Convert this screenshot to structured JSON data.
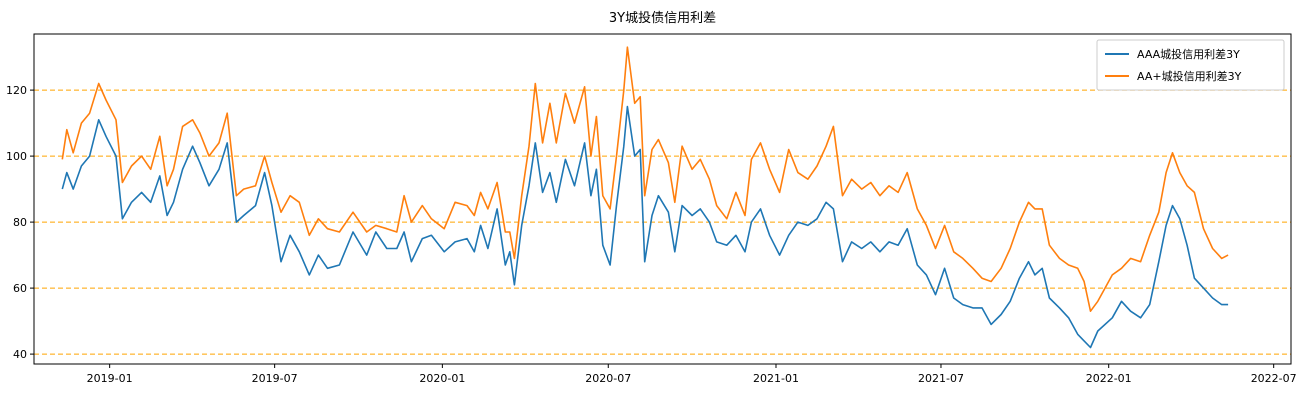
{
  "chart_data": {
    "type": "line",
    "title": "3Y城投债信用利差",
    "xlabel": "",
    "ylabel": "",
    "xlim": [
      "2018-10-10",
      "2022-07-20"
    ],
    "ylim": [
      37,
      137
    ],
    "x_ticks": [
      "2019-01",
      "2019-07",
      "2020-01",
      "2020-07",
      "2021-01",
      "2021-07",
      "2022-01",
      "2022-07"
    ],
    "y_ticks": [
      40,
      60,
      80,
      100,
      120
    ],
    "grid": "horizontal dashed",
    "grid_color": "#ffa500",
    "legend_position": "top-right",
    "series": [
      {
        "name": "AAA城投信用利差3Y",
        "color": "#1f77b4",
        "points": [
          [
            "2018-11-10",
            90
          ],
          [
            "2018-11-15",
            95
          ],
          [
            "2018-11-22",
            90
          ],
          [
            "2018-12-01",
            97
          ],
          [
            "2018-12-10",
            100
          ],
          [
            "2018-12-20",
            111
          ],
          [
            "2018-12-28",
            106
          ],
          [
            "2019-01-08",
            100
          ],
          [
            "2019-01-15",
            81
          ],
          [
            "2019-01-25",
            86
          ],
          [
            "2019-02-05",
            89
          ],
          [
            "2019-02-15",
            86
          ],
          [
            "2019-02-25",
            94
          ],
          [
            "2019-03-05",
            82
          ],
          [
            "2019-03-12",
            86
          ],
          [
            "2019-03-22",
            96
          ],
          [
            "2019-04-02",
            103
          ],
          [
            "2019-04-10",
            98
          ],
          [
            "2019-04-20",
            91
          ],
          [
            "2019-05-01",
            96
          ],
          [
            "2019-05-10",
            104
          ],
          [
            "2019-05-20",
            80
          ],
          [
            "2019-05-28",
            82
          ],
          [
            "2019-06-10",
            85
          ],
          [
            "2019-06-20",
            95
          ],
          [
            "2019-06-28",
            85
          ],
          [
            "2019-07-08",
            68
          ],
          [
            "2019-07-18",
            76
          ],
          [
            "2019-07-28",
            71
          ],
          [
            "2019-08-08",
            64
          ],
          [
            "2019-08-18",
            70
          ],
          [
            "2019-08-28",
            66
          ],
          [
            "2019-09-10",
            67
          ],
          [
            "2019-09-25",
            77
          ],
          [
            "2019-10-10",
            70
          ],
          [
            "2019-10-20",
            77
          ],
          [
            "2019-11-01",
            72
          ],
          [
            "2019-11-12",
            72
          ],
          [
            "2019-11-20",
            77
          ],
          [
            "2019-11-28",
            68
          ],
          [
            "2019-12-10",
            75
          ],
          [
            "2019-12-20",
            76
          ],
          [
            "2020-01-03",
            71
          ],
          [
            "2020-01-15",
            74
          ],
          [
            "2020-01-28",
            75
          ],
          [
            "2020-02-05",
            71
          ],
          [
            "2020-02-12",
            79
          ],
          [
            "2020-02-20",
            72
          ],
          [
            "2020-03-01",
            84
          ],
          [
            "2020-03-10",
            67
          ],
          [
            "2020-03-15",
            71
          ],
          [
            "2020-03-20",
            61
          ],
          [
            "2020-03-28",
            79
          ],
          [
            "2020-04-05",
            91
          ],
          [
            "2020-04-12",
            104
          ],
          [
            "2020-04-20",
            89
          ],
          [
            "2020-04-28",
            95
          ],
          [
            "2020-05-05",
            86
          ],
          [
            "2020-05-15",
            99
          ],
          [
            "2020-05-25",
            91
          ],
          [
            "2020-06-05",
            104
          ],
          [
            "2020-06-12",
            88
          ],
          [
            "2020-06-18",
            96
          ],
          [
            "2020-06-25",
            73
          ],
          [
            "2020-07-03",
            67
          ],
          [
            "2020-07-10",
            85
          ],
          [
            "2020-07-18",
            103
          ],
          [
            "2020-07-22",
            115
          ],
          [
            "2020-07-30",
            100
          ],
          [
            "2020-08-05",
            102
          ],
          [
            "2020-08-10",
            68
          ],
          [
            "2020-08-18",
            82
          ],
          [
            "2020-08-25",
            88
          ],
          [
            "2020-09-05",
            83
          ],
          [
            "2020-09-12",
            71
          ],
          [
            "2020-09-20",
            85
          ],
          [
            "2020-10-01",
            82
          ],
          [
            "2020-10-10",
            84
          ],
          [
            "2020-10-20",
            80
          ],
          [
            "2020-10-28",
            74
          ],
          [
            "2020-11-08",
            73
          ],
          [
            "2020-11-18",
            76
          ],
          [
            "2020-11-28",
            71
          ],
          [
            "2020-12-05",
            80
          ],
          [
            "2020-12-15",
            84
          ],
          [
            "2020-12-25",
            76
          ],
          [
            "2021-01-05",
            70
          ],
          [
            "2021-01-15",
            76
          ],
          [
            "2021-01-25",
            80
          ],
          [
            "2021-02-05",
            79
          ],
          [
            "2021-02-15",
            81
          ],
          [
            "2021-02-25",
            86
          ],
          [
            "2021-03-05",
            84
          ],
          [
            "2021-03-15",
            68
          ],
          [
            "2021-03-25",
            74
          ],
          [
            "2021-04-05",
            72
          ],
          [
            "2021-04-15",
            74
          ],
          [
            "2021-04-25",
            71
          ],
          [
            "2021-05-05",
            74
          ],
          [
            "2021-05-15",
            73
          ],
          [
            "2021-05-25",
            78
          ],
          [
            "2021-06-05",
            67
          ],
          [
            "2021-06-15",
            64
          ],
          [
            "2021-06-25",
            58
          ],
          [
            "2021-07-05",
            66
          ],
          [
            "2021-07-15",
            57
          ],
          [
            "2021-07-25",
            55
          ],
          [
            "2021-08-05",
            54
          ],
          [
            "2021-08-15",
            54
          ],
          [
            "2021-08-25",
            49
          ],
          [
            "2021-09-05",
            52
          ],
          [
            "2021-09-15",
            56
          ],
          [
            "2021-09-25",
            63
          ],
          [
            "2021-10-05",
            68
          ],
          [
            "2021-10-12",
            64
          ],
          [
            "2021-10-20",
            66
          ],
          [
            "2021-10-28",
            57
          ],
          [
            "2021-11-08",
            54
          ],
          [
            "2021-11-18",
            51
          ],
          [
            "2021-11-28",
            46
          ],
          [
            "2021-12-05",
            44
          ],
          [
            "2021-12-12",
            42
          ],
          [
            "2021-12-20",
            47
          ],
          [
            "2022-01-05",
            51
          ],
          [
            "2022-01-15",
            56
          ],
          [
            "2022-01-25",
            53
          ],
          [
            "2022-02-05",
            51
          ],
          [
            "2022-02-15",
            55
          ],
          [
            "2022-02-25",
            68
          ],
          [
            "2022-03-05",
            79
          ],
          [
            "2022-03-12",
            85
          ],
          [
            "2022-03-20",
            81
          ],
          [
            "2022-03-28",
            73
          ],
          [
            "2022-04-05",
            63
          ],
          [
            "2022-04-15",
            60
          ],
          [
            "2022-04-25",
            57
          ],
          [
            "2022-05-05",
            55
          ],
          [
            "2022-05-12",
            55
          ]
        ]
      },
      {
        "name": "AA+城投信用利差3Y",
        "color": "#ff7f0e",
        "points": [
          [
            "2018-11-10",
            99
          ],
          [
            "2018-11-15",
            108
          ],
          [
            "2018-11-22",
            101
          ],
          [
            "2018-12-01",
            110
          ],
          [
            "2018-12-10",
            113
          ],
          [
            "2018-12-20",
            122
          ],
          [
            "2018-12-28",
            117
          ],
          [
            "2019-01-08",
            111
          ],
          [
            "2019-01-15",
            92
          ],
          [
            "2019-01-25",
            97
          ],
          [
            "2019-02-05",
            100
          ],
          [
            "2019-02-15",
            96
          ],
          [
            "2019-02-25",
            106
          ],
          [
            "2019-03-05",
            91
          ],
          [
            "2019-03-12",
            96
          ],
          [
            "2019-03-22",
            109
          ],
          [
            "2019-04-02",
            111
          ],
          [
            "2019-04-10",
            107
          ],
          [
            "2019-04-20",
            100
          ],
          [
            "2019-05-01",
            104
          ],
          [
            "2019-05-10",
            113
          ],
          [
            "2019-05-20",
            88
          ],
          [
            "2019-05-28",
            90
          ],
          [
            "2019-06-10",
            91
          ],
          [
            "2019-06-20",
            100
          ],
          [
            "2019-06-28",
            92
          ],
          [
            "2019-07-08",
            83
          ],
          [
            "2019-07-18",
            88
          ],
          [
            "2019-07-28",
            86
          ],
          [
            "2019-08-08",
            76
          ],
          [
            "2019-08-18",
            81
          ],
          [
            "2019-08-28",
            78
          ],
          [
            "2019-09-10",
            77
          ],
          [
            "2019-09-25",
            83
          ],
          [
            "2019-10-10",
            77
          ],
          [
            "2019-10-20",
            79
          ],
          [
            "2019-11-01",
            78
          ],
          [
            "2019-11-12",
            77
          ],
          [
            "2019-11-20",
            88
          ],
          [
            "2019-11-28",
            80
          ],
          [
            "2019-12-10",
            85
          ],
          [
            "2019-12-20",
            81
          ],
          [
            "2020-01-03",
            78
          ],
          [
            "2020-01-15",
            86
          ],
          [
            "2020-01-28",
            85
          ],
          [
            "2020-02-05",
            82
          ],
          [
            "2020-02-12",
            89
          ],
          [
            "2020-02-20",
            84
          ],
          [
            "2020-03-01",
            92
          ],
          [
            "2020-03-10",
            77
          ],
          [
            "2020-03-15",
            77
          ],
          [
            "2020-03-20",
            69
          ],
          [
            "2020-03-28",
            88
          ],
          [
            "2020-04-05",
            103
          ],
          [
            "2020-04-12",
            122
          ],
          [
            "2020-04-20",
            104
          ],
          [
            "2020-04-28",
            116
          ],
          [
            "2020-05-05",
            104
          ],
          [
            "2020-05-15",
            119
          ],
          [
            "2020-05-25",
            110
          ],
          [
            "2020-06-05",
            121
          ],
          [
            "2020-06-12",
            100
          ],
          [
            "2020-06-18",
            112
          ],
          [
            "2020-06-25",
            88
          ],
          [
            "2020-07-03",
            84
          ],
          [
            "2020-07-10",
            100
          ],
          [
            "2020-07-18",
            120
          ],
          [
            "2020-07-22",
            133
          ],
          [
            "2020-07-30",
            116
          ],
          [
            "2020-08-05",
            118
          ],
          [
            "2020-08-10",
            88
          ],
          [
            "2020-08-18",
            102
          ],
          [
            "2020-08-25",
            105
          ],
          [
            "2020-09-05",
            98
          ],
          [
            "2020-09-12",
            86
          ],
          [
            "2020-09-20",
            103
          ],
          [
            "2020-10-01",
            96
          ],
          [
            "2020-10-10",
            99
          ],
          [
            "2020-10-20",
            93
          ],
          [
            "2020-10-28",
            85
          ],
          [
            "2020-11-08",
            81
          ],
          [
            "2020-11-18",
            89
          ],
          [
            "2020-11-28",
            82
          ],
          [
            "2020-12-05",
            99
          ],
          [
            "2020-12-15",
            104
          ],
          [
            "2020-12-25",
            96
          ],
          [
            "2021-01-05",
            89
          ],
          [
            "2021-01-15",
            102
          ],
          [
            "2021-01-25",
            95
          ],
          [
            "2021-02-05",
            93
          ],
          [
            "2021-02-15",
            97
          ],
          [
            "2021-02-25",
            103
          ],
          [
            "2021-03-05",
            109
          ],
          [
            "2021-03-15",
            88
          ],
          [
            "2021-03-25",
            93
          ],
          [
            "2021-04-05",
            90
          ],
          [
            "2021-04-15",
            92
          ],
          [
            "2021-04-25",
            88
          ],
          [
            "2021-05-05",
            91
          ],
          [
            "2021-05-15",
            89
          ],
          [
            "2021-05-25",
            95
          ],
          [
            "2021-06-05",
            84
          ],
          [
            "2021-06-15",
            79
          ],
          [
            "2021-06-25",
            72
          ],
          [
            "2021-07-05",
            79
          ],
          [
            "2021-07-15",
            71
          ],
          [
            "2021-07-25",
            69
          ],
          [
            "2021-08-05",
            66
          ],
          [
            "2021-08-15",
            63
          ],
          [
            "2021-08-25",
            62
          ],
          [
            "2021-09-05",
            66
          ],
          [
            "2021-09-15",
            72
          ],
          [
            "2021-09-25",
            80
          ],
          [
            "2021-10-05",
            86
          ],
          [
            "2021-10-12",
            84
          ],
          [
            "2021-10-20",
            84
          ],
          [
            "2021-10-28",
            73
          ],
          [
            "2021-11-08",
            69
          ],
          [
            "2021-11-18",
            67
          ],
          [
            "2021-11-28",
            66
          ],
          [
            "2021-12-05",
            62
          ],
          [
            "2021-12-12",
            53
          ],
          [
            "2021-12-20",
            56
          ],
          [
            "2022-01-05",
            64
          ],
          [
            "2022-01-15",
            66
          ],
          [
            "2022-01-25",
            69
          ],
          [
            "2022-02-05",
            68
          ],
          [
            "2022-02-15",
            76
          ],
          [
            "2022-02-25",
            83
          ],
          [
            "2022-03-05",
            95
          ],
          [
            "2022-03-12",
            101
          ],
          [
            "2022-03-20",
            95
          ],
          [
            "2022-03-28",
            91
          ],
          [
            "2022-04-05",
            89
          ],
          [
            "2022-04-15",
            78
          ],
          [
            "2022-04-25",
            72
          ],
          [
            "2022-05-05",
            69
          ],
          [
            "2022-05-12",
            70
          ]
        ]
      }
    ]
  }
}
